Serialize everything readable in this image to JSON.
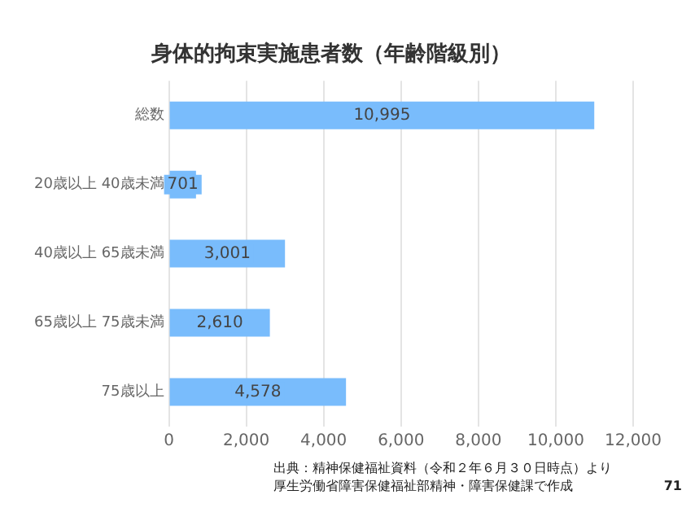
{
  "chart_data": {
    "type": "bar",
    "orientation": "horizontal",
    "title": "身体的拘束実施患者数（年齢階級別）",
    "categories": [
      "総数",
      "20歳以上 40歳未満",
      "40歳以上 65歳未満",
      "65歳以上 75歳未満",
      "75歳以上"
    ],
    "values": [
      10995,
      701,
      3001,
      2610,
      4578
    ],
    "color": "#79bcfc",
    "xlim": [
      0,
      12000
    ],
    "xticks": [
      {
        "value": 0,
        "label": "0"
      },
      {
        "value": 2000,
        "label": "2,000"
      },
      {
        "value": 4000,
        "label": "4,000"
      },
      {
        "value": 6000,
        "label": "6,000"
      },
      {
        "value": 8000,
        "label": "8,000"
      },
      {
        "value": 10000,
        "label": "10,000"
      },
      {
        "value": 12000,
        "label": "12,000"
      }
    ],
    "grid": "x",
    "value_labels": [
      "10,995",
      "701",
      "3,001",
      "2,610",
      "4,578"
    ],
    "legend": false,
    "annotations": [
      "出典：精神保健福祉資料（令和２年６月３０日時点）より",
      "厚生労働省障害保健福祉部精神・障害保健課で作成",
      "71"
    ]
  }
}
